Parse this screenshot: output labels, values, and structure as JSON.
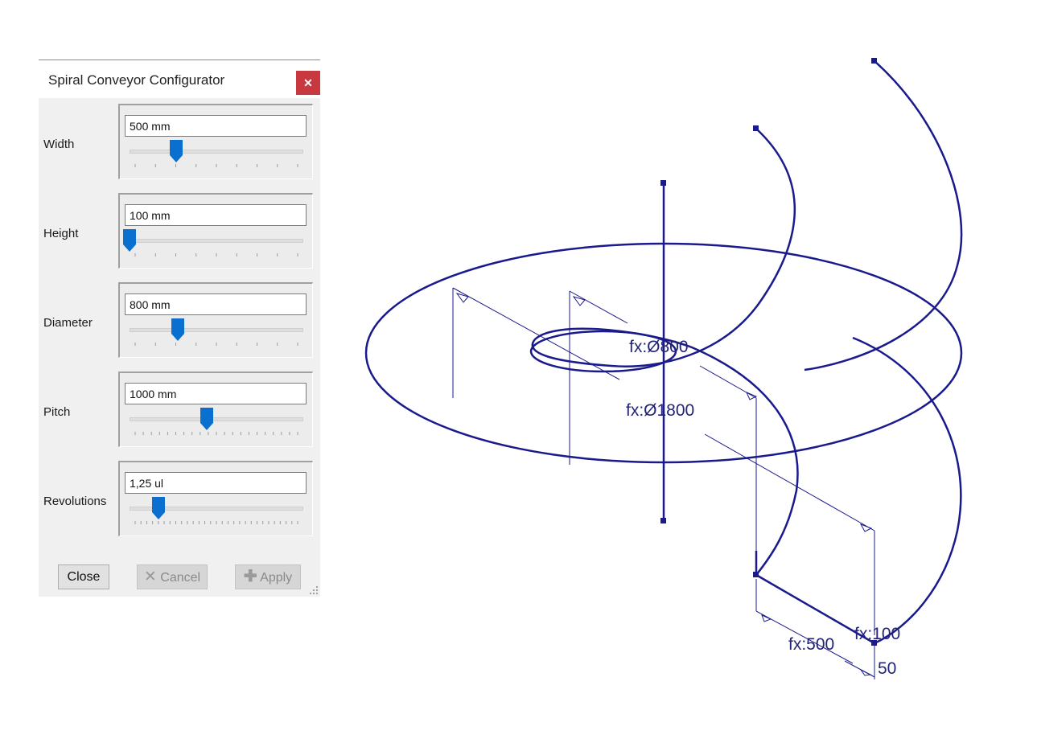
{
  "dialog": {
    "title": "Spiral Conveyor Configurator",
    "close_icon": "close-icon",
    "rows": [
      {
        "label": "Width",
        "value": "500 mm",
        "slider_fraction": 0.27
      },
      {
        "label": "Height",
        "value": "100 mm",
        "slider_fraction": 0.0
      },
      {
        "label": "Diameter",
        "value": "800 mm",
        "slider_fraction": 0.28
      },
      {
        "label": "Pitch",
        "value": "1000 mm",
        "slider_fraction": 0.45
      },
      {
        "label": "Revolutions",
        "value": "1,25 ul",
        "slider_fraction": 0.17
      }
    ],
    "buttons": {
      "close": "Close",
      "cancel": "Cancel",
      "apply": "Apply"
    },
    "accent_color": "#0b6fd0",
    "close_button_color": "#c8393f"
  },
  "drawing": {
    "line_color": "#1a1a8c",
    "dimensions": {
      "inner_diameter": "fx:Ø800",
      "outer_diameter": "fx:Ø1800",
      "width": "fx:500",
      "height": "fx:100",
      "offset": "50"
    }
  }
}
